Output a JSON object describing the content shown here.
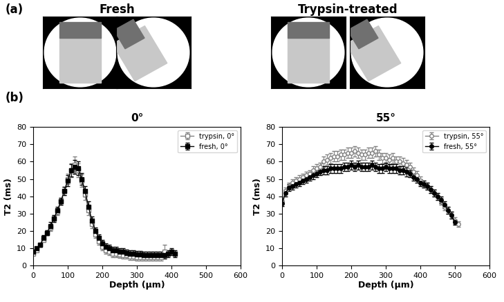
{
  "panel_labels": [
    "(a)",
    "(b)"
  ],
  "image_titles": [
    "Fresh",
    "Trypsin-treated"
  ],
  "chart_data": [
    {
      "type": "line",
      "title": "0°",
      "x_label": "Depth (μm)",
      "y_label": "T2 (ms)",
      "xlim": [
        0,
        600
      ],
      "xticks": [
        0,
        100,
        200,
        300,
        400,
        500,
        600
      ],
      "ylim": [
        0,
        80
      ],
      "yticks": [
        0,
        10,
        20,
        30,
        40,
        50,
        60,
        70,
        80
      ],
      "legend": "upper right",
      "series": [
        {
          "name": "trypsin, 0°",
          "color": "#808080",
          "marker": "square_open",
          "x": [
            0,
            10,
            20,
            30,
            40,
            50,
            60,
            70,
            80,
            90,
            100,
            110,
            120,
            130,
            140,
            150,
            160,
            170,
            180,
            190,
            200,
            210,
            220,
            230,
            240,
            250,
            260,
            270,
            280,
            290,
            300,
            310,
            320,
            330,
            340,
            350,
            360,
            370,
            380
          ],
          "values": [
            7,
            9,
            12,
            15,
            19,
            22,
            27,
            31,
            37,
            43,
            50,
            55,
            58,
            55,
            49,
            41,
            32,
            24,
            18,
            14,
            11,
            9,
            8,
            7,
            7,
            6.5,
            6,
            6,
            5.5,
            5.5,
            5,
            5,
            5,
            5,
            5,
            5,
            5,
            5,
            8
          ],
          "errors": [
            1,
            1,
            1,
            1.5,
            1.5,
            2,
            2,
            2,
            2,
            2.5,
            3,
            4,
            5,
            4,
            3.5,
            3,
            3,
            2.5,
            2,
            2,
            2,
            2,
            2,
            2,
            2,
            2,
            2,
            2,
            2,
            2,
            2,
            2,
            2,
            2,
            2,
            2,
            2,
            2,
            4
          ]
        },
        {
          "name": "fresh, 0°",
          "color": "#000000",
          "marker": "square",
          "x": [
            0,
            10,
            20,
            30,
            40,
            50,
            60,
            70,
            80,
            90,
            100,
            110,
            120,
            130,
            140,
            150,
            160,
            170,
            180,
            190,
            200,
            210,
            220,
            230,
            240,
            250,
            260,
            270,
            280,
            290,
            300,
            310,
            320,
            330,
            340,
            350,
            360,
            370,
            380,
            390,
            400,
            410
          ],
          "values": [
            8,
            10,
            12,
            16,
            19,
            23,
            27,
            32,
            37,
            43,
            49,
            55,
            57,
            56,
            50,
            43,
            34,
            26,
            20,
            16,
            13,
            11,
            10,
            9,
            9,
            8,
            8,
            7.5,
            7,
            7,
            6.5,
            6.5,
            6,
            6,
            6,
            6,
            6,
            6,
            6,
            7,
            8,
            7
          ],
          "errors": [
            1,
            1,
            1,
            1.5,
            1.5,
            2,
            2,
            2,
            2,
            2.5,
            3,
            3.5,
            4,
            4,
            3.5,
            3,
            3,
            2.5,
            2,
            2,
            2,
            2,
            2,
            2,
            2,
            2,
            2,
            2,
            2,
            2,
            2,
            2,
            2,
            2,
            2,
            2,
            2,
            2,
            2,
            2,
            2,
            2
          ]
        }
      ]
    },
    {
      "type": "line",
      "title": "55°",
      "x_label": "Depth (μm)",
      "y_label": "T2 (ms)",
      "xlim": [
        0,
        600
      ],
      "xticks": [
        0,
        100,
        200,
        300,
        400,
        500,
        600
      ],
      "ylim": [
        0,
        80
      ],
      "yticks": [
        0,
        10,
        20,
        30,
        40,
        50,
        60,
        70,
        80
      ],
      "legend": "upper right",
      "series": [
        {
          "name": "trypsin, 55°",
          "color": "#808080",
          "marker": "circle_open",
          "x": [
            0,
            10,
            20,
            30,
            40,
            50,
            60,
            70,
            80,
            90,
            100,
            110,
            120,
            130,
            140,
            150,
            160,
            170,
            180,
            190,
            200,
            210,
            220,
            230,
            240,
            250,
            260,
            270,
            280,
            290,
            300,
            310,
            320,
            330,
            340,
            350,
            360,
            370,
            380,
            390,
            400,
            410,
            420,
            430,
            440,
            450,
            460,
            470,
            480,
            490,
            500,
            510
          ],
          "values": [
            37,
            43,
            46,
            48,
            49,
            50,
            51,
            52,
            53,
            55,
            56,
            57,
            60,
            61,
            62,
            63,
            63,
            64,
            64,
            65,
            65,
            66,
            65,
            64,
            64,
            65,
            65,
            66,
            64,
            62,
            62,
            61,
            62,
            60,
            60,
            59,
            58,
            57,
            54,
            52,
            49,
            47,
            46,
            44,
            42,
            40,
            37,
            34,
            32,
            29,
            26,
            24
          ],
          "errors": [
            1.5,
            2,
            2,
            2,
            2,
            2,
            2,
            2,
            2,
            2.5,
            2.5,
            2.5,
            3,
            3,
            3,
            3,
            3,
            3,
            3,
            3,
            3,
            3,
            3,
            3,
            3,
            3,
            3,
            3,
            3,
            3,
            3,
            3,
            3,
            3,
            3,
            3,
            3,
            2.5,
            2.5,
            2.5,
            2.5,
            2,
            2,
            2,
            2,
            2,
            2,
            2,
            2,
            2,
            2,
            1.5
          ]
        },
        {
          "name": "fresh, 55°",
          "color": "#000000",
          "marker": "circle",
          "x": [
            0,
            10,
            20,
            30,
            40,
            50,
            60,
            70,
            80,
            90,
            100,
            110,
            120,
            130,
            140,
            150,
            160,
            170,
            180,
            190,
            200,
            210,
            220,
            230,
            240,
            250,
            260,
            270,
            280,
            290,
            300,
            310,
            320,
            330,
            340,
            350,
            360,
            370,
            380,
            390,
            400,
            410,
            420,
            430,
            440,
            450,
            460,
            470,
            480,
            490,
            500
          ],
          "values": [
            36,
            42,
            45,
            46,
            47,
            48,
            49,
            50,
            51,
            52,
            53,
            54,
            55,
            55,
            56,
            56,
            56,
            56,
            57,
            57,
            58,
            57,
            58,
            57,
            57,
            57,
            58,
            57,
            56,
            56,
            57,
            56,
            56,
            56,
            55,
            55,
            54,
            53,
            51,
            50,
            48,
            47,
            46,
            44,
            42,
            40,
            38,
            35,
            32,
            29,
            25
          ],
          "errors": [
            1.5,
            2,
            2,
            2,
            2,
            2,
            2,
            2,
            2,
            2,
            2,
            2,
            2.5,
            2.5,
            2.5,
            2.5,
            2.5,
            2.5,
            2.5,
            2.5,
            2.5,
            2.5,
            2.5,
            2.5,
            2.5,
            2.5,
            2.5,
            2.5,
            2.5,
            2.5,
            2.5,
            2.5,
            2.5,
            2.5,
            2.5,
            2.5,
            2.5,
            2,
            2,
            2,
            2,
            2,
            2,
            2,
            2,
            2,
            2,
            2,
            2,
            2,
            1.5
          ]
        }
      ]
    }
  ]
}
